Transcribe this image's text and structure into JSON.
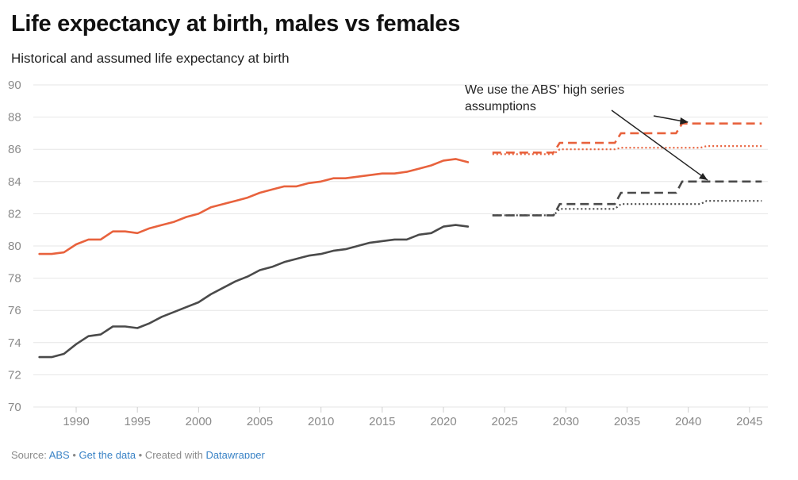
{
  "header": {
    "title": "Life expectancy at birth, males vs females",
    "subtitle": "Historical and assumed life expectancy at birth"
  },
  "footer": {
    "source_prefix": "Source: ",
    "source_link": "ABS",
    "separator1": " • ",
    "get_data_link": "Get the data",
    "separator2": " • Created with ",
    "tool_link": "Datawrapper"
  },
  "annotation": {
    "line1": "We use the ABS' high series",
    "line2": "assumptions"
  },
  "chart_data": {
    "type": "line",
    "title": "Life expectancy at birth, males vs females",
    "subtitle": "Historical and assumed life expectancy at birth",
    "xlabel": "",
    "ylabel": "",
    "xlim": [
      1986.5,
      2046.5
    ],
    "ylim": [
      70,
      90
    ],
    "x_ticks": [
      1990,
      1995,
      2000,
      2005,
      2010,
      2015,
      2020,
      2025,
      2030,
      2035,
      2040,
      2045
    ],
    "y_ticks": [
      70,
      72,
      74,
      76,
      78,
      80,
      82,
      84,
      86,
      88,
      90
    ],
    "grid": true,
    "legend": "none",
    "colors": {
      "female": "#e8623d",
      "male": "#4a4a4a",
      "grid": "#e6e6e6",
      "tick_text": "#8a8a8a",
      "arrow": "#222222"
    },
    "series": [
      {
        "group": "female",
        "style": "solid",
        "x": [
          1987,
          1988,
          1989,
          1990,
          1991,
          1992,
          1993,
          1994,
          1995,
          1996,
          1997,
          1998,
          1999,
          2000,
          2001,
          2002,
          2003,
          2004,
          2005,
          2006,
          2007,
          2008,
          2009,
          2010,
          2011,
          2012,
          2013,
          2014,
          2015,
          2016,
          2017,
          2018,
          2019,
          2020,
          2021,
          2022
        ],
        "values": [
          79.5,
          79.5,
          79.6,
          80.1,
          80.4,
          80.4,
          80.9,
          80.9,
          80.8,
          81.1,
          81.3,
          81.5,
          81.8,
          82.0,
          82.4,
          82.6,
          82.8,
          83.0,
          83.3,
          83.5,
          83.7,
          83.7,
          83.9,
          84.0,
          84.2,
          84.2,
          84.3,
          84.4,
          84.5,
          84.5,
          84.6,
          84.8,
          85.0,
          85.3,
          85.4,
          85.2
        ]
      },
      {
        "group": "male",
        "style": "solid",
        "x": [
          1987,
          1988,
          1989,
          1990,
          1991,
          1992,
          1993,
          1994,
          1995,
          1996,
          1997,
          1998,
          1999,
          2000,
          2001,
          2002,
          2003,
          2004,
          2005,
          2006,
          2007,
          2008,
          2009,
          2010,
          2011,
          2012,
          2013,
          2014,
          2015,
          2016,
          2017,
          2018,
          2019,
          2020,
          2021,
          2022
        ],
        "values": [
          73.1,
          73.1,
          73.3,
          73.9,
          74.4,
          74.5,
          75.0,
          75.0,
          74.9,
          75.2,
          75.6,
          75.9,
          76.2,
          76.5,
          77.0,
          77.4,
          77.8,
          78.1,
          78.5,
          78.7,
          79.0,
          79.2,
          79.4,
          79.5,
          79.7,
          79.8,
          80.0,
          80.2,
          80.3,
          80.4,
          80.4,
          80.7,
          80.8,
          81.2,
          81.3,
          81.2
        ]
      },
      {
        "group": "female",
        "style": "dashed",
        "x": [
          2024,
          2029,
          2029.5,
          2034,
          2034.5,
          2039,
          2039.5,
          2046
        ],
        "values": [
          85.8,
          85.8,
          86.4,
          86.4,
          87.0,
          87.0,
          87.6,
          87.6
        ]
      },
      {
        "group": "female",
        "style": "dotted",
        "x": [
          2024,
          2029,
          2029.5,
          2034,
          2034.5,
          2041,
          2041.5,
          2046
        ],
        "values": [
          85.7,
          85.7,
          86.0,
          86.0,
          86.1,
          86.1,
          86.2,
          86.2
        ]
      },
      {
        "group": "male",
        "style": "dashed",
        "x": [
          2024,
          2029,
          2029.5,
          2034,
          2034.5,
          2039,
          2039.5,
          2046
        ],
        "values": [
          81.9,
          81.9,
          82.6,
          82.6,
          83.3,
          83.3,
          84.0,
          84.0
        ]
      },
      {
        "group": "male",
        "style": "dotted",
        "x": [
          2024,
          2029,
          2029.5,
          2034,
          2034.5,
          2041,
          2041.5,
          2046
        ],
        "values": [
          81.9,
          81.9,
          82.3,
          82.3,
          82.6,
          82.6,
          82.8,
          82.8
        ]
      }
    ]
  }
}
